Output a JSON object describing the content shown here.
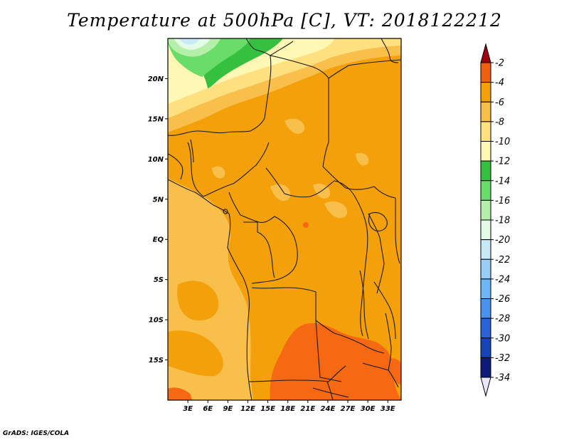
{
  "title": "Temperature at 500hPa [C], VT: 2018122212",
  "credit": "GrADS: IGES/COLA",
  "map": {
    "lat_range": [
      -20,
      25
    ],
    "lon_range": [
      0,
      35
    ],
    "lat_ticks": [
      {
        "value": 20,
        "label": "20N"
      },
      {
        "value": 15,
        "label": "15N"
      },
      {
        "value": 10,
        "label": "10N"
      },
      {
        "value": 5,
        "label": "5N"
      },
      {
        "value": 0,
        "label": "EQ"
      },
      {
        "value": -5,
        "label": "5S"
      },
      {
        "value": -10,
        "label": "10S"
      },
      {
        "value": -15,
        "label": "15S"
      }
    ],
    "lon_ticks": [
      {
        "value": 3,
        "label": "3E"
      },
      {
        "value": 6,
        "label": "6E"
      },
      {
        "value": 9,
        "label": "9E"
      },
      {
        "value": 12,
        "label": "12E"
      },
      {
        "value": 15,
        "label": "15E"
      },
      {
        "value": 18,
        "label": "18E"
      },
      {
        "value": 21,
        "label": "21E"
      },
      {
        "value": 24,
        "label": "24E"
      },
      {
        "value": 27,
        "label": "27E"
      },
      {
        "value": 30,
        "label": "30E"
      },
      {
        "value": 33,
        "label": "33E"
      }
    ]
  },
  "colorbar": {
    "labels": [
      "-2",
      "-4",
      "-6",
      "-8",
      "-10",
      "-12",
      "-14",
      "-16",
      "-18",
      "-20",
      "-22",
      "-24",
      "-26",
      "-28",
      "-30",
      "-32",
      "-34"
    ],
    "colors": [
      "#a0000f",
      "#f06010",
      "#f4a00a",
      "#f8c04a",
      "#fee080",
      "#fff8b4",
      "#36c040",
      "#6adc6a",
      "#b4f0aa",
      "#e4fce6",
      "#c8eaf8",
      "#98cef8",
      "#6eb6f4",
      "#4a92ec",
      "#2a62d8",
      "#1744b4",
      "#0c1a78",
      "#e8e8fa"
    ]
  },
  "colors": {
    "dark_orange": "#f66812",
    "orange": "#f4a00a",
    "light_orange": "#f8c04a",
    "yellow": "#fee080",
    "pale_yellow": "#fff8b4",
    "green": "#36c040",
    "light_green": "#6adc6a",
    "pale_green": "#b4f0aa",
    "very_pale_green": "#e4fce6",
    "light_blue": "#c8eaf8",
    "border": "#1a1a1a"
  }
}
